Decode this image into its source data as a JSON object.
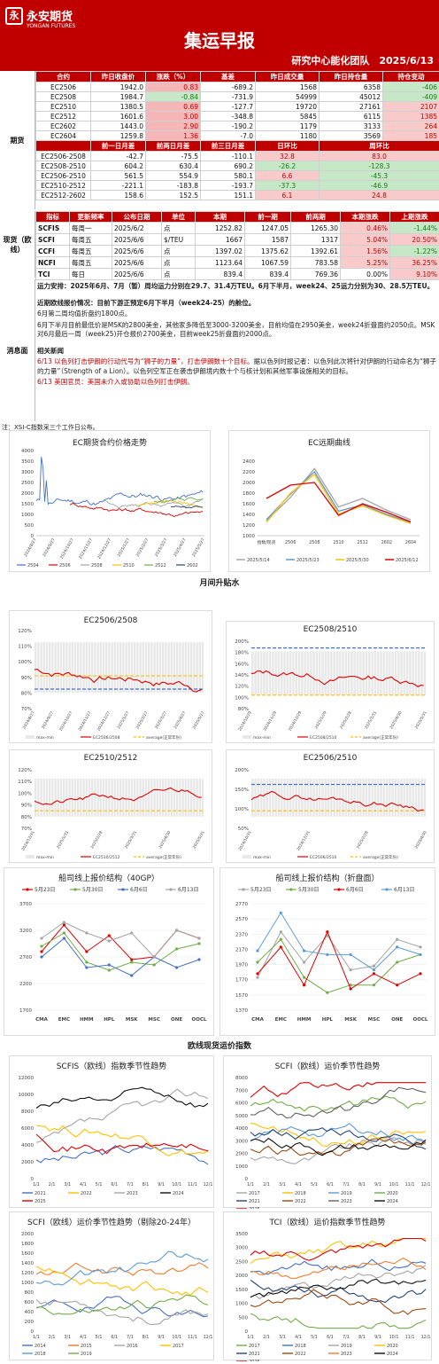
{
  "header": {
    "logo_mark": "永",
    "logo_cn": "永安期货",
    "logo_en": "YONGAN FUTURES",
    "title": "集运早报",
    "subtitle": "研究中心能化团队　2025/6/13"
  },
  "futures": {
    "side_label": "期货",
    "headers": [
      "合约",
      "昨日收盘价",
      "涨跌（%）",
      "基差",
      "昨日成交量",
      "昨日持仓量",
      "持仓变动"
    ],
    "rows": [
      [
        "EC2506",
        "1942.0",
        "0.83",
        "-689.2",
        "1568",
        "6358",
        "-406"
      ],
      [
        "EC2508",
        "1984.7",
        "-0.84",
        "-731.9",
        "54999",
        "45012",
        "-409"
      ],
      [
        "EC2510",
        "1380.5",
        "0.69",
        "-127.7",
        "19720",
        "27161",
        "2107"
      ],
      [
        "EC2512",
        "1601.6",
        "3.00",
        "-348.8",
        "5845",
        "6115",
        "1385"
      ],
      [
        "EC2602",
        "1443.0",
        "2.90",
        "-190.2",
        "1179",
        "3133",
        "264"
      ],
      [
        "EC2604",
        "1259.8",
        "1.36",
        "-7.0",
        "1180",
        "3569",
        "185"
      ]
    ],
    "spread_headers": [
      "",
      "前一日月差",
      "前两日月差",
      "前三日月差",
      "日环比",
      "周环比"
    ],
    "spread_rows": [
      [
        "EC2506-2508",
        "-42.7",
        "-75.5",
        "-110.1",
        "32.8",
        "83.0"
      ],
      [
        "EC2508-2510",
        "604.2",
        "630.4",
        "690.2",
        "-26.2",
        "-128.3"
      ],
      [
        "EC2506-2510",
        "561.5",
        "554.9",
        "580.1",
        "6.6",
        "-45.3"
      ],
      [
        "EC2510-2512",
        "-221.1",
        "-183.8",
        "-193.7",
        "-37.3",
        "-46.9"
      ],
      [
        "EC2512-2602",
        "158.6",
        "152.5",
        "151.1",
        "6.1",
        "24.8"
      ]
    ]
  },
  "spot": {
    "side_label": "现货（欧线）",
    "headers": [
      "指标",
      "更新频率",
      "公布日期",
      "单位",
      "本期",
      "前一期",
      "前两期",
      "本期涨跌",
      "上期涨跌"
    ],
    "rows": [
      [
        "SCFIS",
        "每周一",
        "2025/6/2",
        "点",
        "1252.82",
        "1247.05",
        "1265.30",
        "0.46%",
        "-1.44%"
      ],
      [
        "SCFI",
        "每周五",
        "2025/6/6",
        "$/TEU",
        "1667",
        "1587",
        "1317",
        "5.04%",
        "20.50%"
      ],
      [
        "CCFI",
        "每周五",
        "2025/6/6",
        "点",
        "1397.02",
        "1375.62",
        "1392.61",
        "1.56%",
        "-1.22%"
      ],
      [
        "NCFI",
        "每周五",
        "2025/6/6",
        "点",
        "1123.64",
        "1067.59",
        "783.58",
        "5.25%",
        "36.25%"
      ],
      [
        "TCI",
        "每日",
        "2025/6/6",
        "点",
        "839.4",
        "839.4",
        "769.36",
        "0.00%",
        "9.10%"
      ]
    ]
  },
  "news": {
    "side_label": "消息面",
    "p1": "运力安排：2025年6月、7月（暂）周均运力分别在29.7、31.4万TEU。6月下半月，week24、25运力分别为30、28.5万TEU。",
    "p2_title": "近期欧线报价情况：目前下游正预定6月下半月（week24-25）的舱位。",
    "p2a": "6月第二周均值折盘约1800点。",
    "p2b": "6月下半月目前最低价是MSK的2800美金，其他家多降低至3000-3200美金，目前均值在2950美金，week24折盘面约2050点。MSK对6月最后一周（week25)开仓报价2700美金，目前week25折盘面约2000点。",
    "p3_title": "相关新闻",
    "p3a": "6/13 以色列打击伊朗的行动代号为“狮子的力量”，打击伊朗数十个目标。",
    "p3b": "据以色列时报记者：以色列此次将针对伊朗的行动命名为“狮子的力量”（Strength of a Lion）。以色列空军正在袭击伊朗境内数十个与核计划和其他军事设施相关的目标。",
    "p3c": "6/13 美国官员：美国未介入或协助以色列打击伊朗。"
  },
  "footnote": "注：XSI-C指数采三个工作日公布。",
  "section_titles": {
    "spread": "月间升贴水",
    "spot": "欧线现货运价指数"
  },
  "chart_titles": {
    "c1": "EC期货合约价格走势",
    "c2": "EC远期曲线",
    "c3": "EC2506/2508",
    "c4": "EC2508/2510",
    "c5": "EC2510/2512",
    "c6": "EC2506/2510",
    "c7": "船司线上报价结构（40GP）",
    "c8": "船司线上报价结构（折盘面）",
    "c9": "SCFIS（欧线）指数季节性趋势",
    "c10": "SCFI（欧线）运价季节性趋势",
    "c11": "SCFI（欧线）运价季节性趋势（剔除20-24年）",
    "c12": "TCI（欧线）运价指数季节性趋势"
  },
  "chart_data": [
    {
      "type": "line",
      "title": "EC期货合约价格走势",
      "ylim": [
        0,
        4000
      ],
      "series": [
        {
          "name": "2504"
        },
        {
          "name": "2506"
        },
        {
          "name": "2508"
        },
        {
          "name": "2510"
        },
        {
          "name": "2512"
        },
        {
          "name": "2602"
        }
      ]
    },
    {
      "type": "line",
      "title": "EC远期曲线",
      "categories": [
        "指数/现货",
        "2506",
        "2508",
        "2510",
        "2512",
        "2602",
        "2604"
      ],
      "ylim": [
        1000,
        2600
      ],
      "series": [
        {
          "name": "2025/5/14",
          "values": [
            1280,
            1720,
            2260,
            1540,
            1700,
            1480,
            1300
          ]
        },
        {
          "name": "2025/5/23",
          "values": [
            1300,
            1780,
            2200,
            1460,
            1580,
            1400,
            1250
          ]
        },
        {
          "name": "2025/5/30",
          "values": [
            1250,
            1800,
            2150,
            1410,
            1560,
            1380,
            1230
          ]
        },
        {
          "name": "2025/6/12",
          "values": [
            1700,
            1950,
            2000,
            1380,
            1600,
            1440,
            1260
          ]
        }
      ]
    },
    {
      "type": "line",
      "title": "船司线上报价结构（40GP）",
      "categories": [
        "CMA",
        "EMC",
        "HMM",
        "HPL",
        "MSK",
        "MSC",
        "ONE",
        "OOCL"
      ],
      "ylim": [
        1700,
        3700
      ],
      "series": [
        {
          "name": "5月23日",
          "values": [
            2800,
            3300,
            2800,
            3100,
            2650,
            2700,
            3200,
            3050
          ]
        },
        {
          "name": "5月30日",
          "values": [
            2900,
            3150,
            2600,
            2450,
            2600,
            2550,
            2850,
            2950
          ]
        },
        {
          "name": "6月6日",
          "values": [
            2700,
            3050,
            2500,
            2550,
            2350,
            2700,
            2500,
            2650
          ]
        },
        {
          "name": "6月13日",
          "values": [
            3050,
            3350,
            3150,
            3000,
            3150,
            2700,
            3200,
            3050
          ]
        }
      ]
    },
    {
      "type": "line",
      "title": "船司线上报价结构（折盘面）",
      "categories": [
        "CMA",
        "EMC",
        "HMM",
        "HPL",
        "MSK",
        "MSC",
        "ONE",
        "OOCL"
      ],
      "ylim": [
        1370,
        2770
      ],
      "series": [
        {
          "name": "5月23日",
          "values": [
            1800,
            2400,
            2000,
            2350,
            1900,
            1950,
            2300,
            2200
          ]
        },
        {
          "name": "5月30日",
          "values": [
            2000,
            2300,
            1800,
            1600,
            1700,
            1700,
            2000,
            2100
          ]
        },
        {
          "name": "6月6日",
          "values": [
            1850,
            2200,
            1700,
            2400,
            1650,
            1850,
            1700,
            1850
          ]
        },
        {
          "name": "6月13日",
          "values": [
            2150,
            2650,
            2150,
            2100,
            2100,
            1900,
            2200,
            2100
          ]
        }
      ]
    }
  ]
}
